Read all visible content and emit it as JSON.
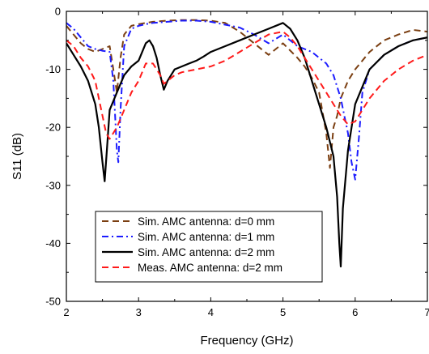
{
  "chart_data": {
    "type": "line",
    "title": "",
    "xlabel": "Frequency (GHz)",
    "ylabel": "S11 (dB)",
    "xlim": [
      2,
      7
    ],
    "ylim": [
      -50,
      0
    ],
    "x_ticks": [
      2,
      3,
      4,
      5,
      6,
      7
    ],
    "y_ticks": [
      0,
      -10,
      -20,
      -30,
      -40,
      -50
    ],
    "grid": false,
    "legend_position": "bottom-center",
    "series": [
      {
        "name": "Sim. AMC antenna: d=0 mm",
        "color": "#7b3f12",
        "dash": "dash",
        "x": [
          2.0,
          2.1,
          2.2,
          2.3,
          2.4,
          2.5,
          2.6,
          2.65,
          2.7,
          2.75,
          2.8,
          2.9,
          3.0,
          3.1,
          3.2,
          3.4,
          3.6,
          3.8,
          4.0,
          4.2,
          4.4,
          4.6,
          4.8,
          5.0,
          5.2,
          5.3,
          5.4,
          5.5,
          5.6,
          5.65,
          5.7,
          5.75,
          5.8,
          5.9,
          6.0,
          6.2,
          6.4,
          6.6,
          6.8,
          7.0
        ],
        "y": [
          -2.5,
          -4.0,
          -5.5,
          -6.5,
          -7.0,
          -6.5,
          -6.0,
          -10.0,
          -14.0,
          -8.0,
          -4.0,
          -2.5,
          -2.2,
          -2.0,
          -1.8,
          -1.6,
          -1.5,
          -1.5,
          -1.6,
          -2.0,
          -3.5,
          -5.5,
          -7.5,
          -5.5,
          -8.0,
          -9.5,
          -11.5,
          -14.0,
          -21.0,
          -27.0,
          -20.0,
          -18.0,
          -15.0,
          -12.0,
          -10.0,
          -7.0,
          -5.0,
          -4.0,
          -3.2,
          -3.5
        ]
      },
      {
        "name": "Sim. AMC antenna: d=1 mm",
        "color": "#1c1cff",
        "dash": "dashdot",
        "x": [
          2.0,
          2.1,
          2.2,
          2.3,
          2.4,
          2.5,
          2.6,
          2.65,
          2.7,
          2.72,
          2.75,
          2.8,
          2.9,
          3.0,
          3.1,
          3.2,
          3.4,
          3.6,
          3.8,
          4.0,
          4.2,
          4.4,
          4.6,
          4.8,
          5.0,
          5.2,
          5.4,
          5.5,
          5.6,
          5.7,
          5.8,
          5.85,
          5.9,
          5.95,
          6.0,
          6.05,
          6.1,
          6.2,
          6.4,
          6.6,
          6.8,
          7.0
        ],
        "y": [
          -2.0,
          -3.0,
          -4.5,
          -6.0,
          -6.5,
          -6.8,
          -7.0,
          -12.0,
          -24.0,
          -26.0,
          -17.0,
          -6.0,
          -3.0,
          -2.5,
          -2.2,
          -2.0,
          -1.8,
          -1.6,
          -1.6,
          -1.8,
          -2.3,
          -2.8,
          -4.0,
          -5.5,
          -4.0,
          -6.0,
          -7.0,
          -8.0,
          -9.0,
          -11.0,
          -15.0,
          -18.0,
          -21.0,
          -26.0,
          -29.0,
          -22.0,
          -14.0,
          -10.0,
          -7.5,
          -6.0,
          -5.0,
          -4.5
        ]
      },
      {
        "name": "Sim. AMC antenna: d=2 mm",
        "color": "#000000",
        "dash": "solid",
        "x": [
          2.0,
          2.1,
          2.2,
          2.3,
          2.4,
          2.45,
          2.5,
          2.53,
          2.56,
          2.6,
          2.7,
          2.8,
          2.9,
          3.0,
          3.1,
          3.15,
          3.2,
          3.25,
          3.3,
          3.35,
          3.4,
          3.5,
          3.6,
          3.7,
          3.8,
          3.9,
          4.0,
          4.2,
          4.4,
          4.6,
          4.8,
          5.0,
          5.1,
          5.2,
          5.3,
          5.4,
          5.5,
          5.6,
          5.7,
          5.75,
          5.78,
          5.8,
          5.83,
          5.9,
          6.0,
          6.2,
          6.4,
          6.6,
          6.8,
          7.0
        ],
        "y": [
          -5.5,
          -7.5,
          -9.5,
          -12.0,
          -16.0,
          -20.0,
          -26.0,
          -29.3,
          -24.0,
          -17.0,
          -14.0,
          -11.0,
          -9.5,
          -8.5,
          -5.5,
          -5.0,
          -6.0,
          -8.0,
          -11.0,
          -13.5,
          -12.0,
          -10.0,
          -9.5,
          -9.0,
          -8.5,
          -7.8,
          -7.0,
          -6.0,
          -5.0,
          -4.0,
          -3.0,
          -2.0,
          -3.0,
          -5.0,
          -8.0,
          -12.0,
          -16.0,
          -20.0,
          -25.0,
          -32.0,
          -40.0,
          -44.0,
          -34.0,
          -24.0,
          -16.0,
          -10.0,
          -7.5,
          -6.0,
          -5.0,
          -4.5
        ]
      },
      {
        "name": "Meas. AMC antenna: d=2 mm",
        "color": "#ff1a1a",
        "dash": "dash",
        "x": [
          2.0,
          2.1,
          2.2,
          2.3,
          2.4,
          2.45,
          2.5,
          2.55,
          2.6,
          2.7,
          2.8,
          2.9,
          3.0,
          3.1,
          3.2,
          3.3,
          3.35,
          3.4,
          3.5,
          3.6,
          3.8,
          4.0,
          4.2,
          4.4,
          4.6,
          4.8,
          5.0,
          5.1,
          5.2,
          5.3,
          5.4,
          5.5,
          5.6,
          5.7,
          5.8,
          5.9,
          6.0,
          6.2,
          6.4,
          6.6,
          6.8,
          7.0
        ],
        "y": [
          -5.0,
          -6.0,
          -8.0,
          -9.5,
          -12.0,
          -15.0,
          -18.0,
          -21.0,
          -22.0,
          -20.0,
          -17.0,
          -14.0,
          -12.0,
          -9.0,
          -9.0,
          -11.0,
          -12.5,
          -12.0,
          -11.0,
          -10.5,
          -10.0,
          -9.5,
          -8.5,
          -7.0,
          -5.5,
          -4.0,
          -3.5,
          -4.5,
          -6.0,
          -8.0,
          -10.0,
          -12.0,
          -14.0,
          -16.0,
          -18.0,
          -19.5,
          -19.0,
          -15.0,
          -12.0,
          -10.0,
          -8.5,
          -7.5
        ]
      }
    ]
  }
}
